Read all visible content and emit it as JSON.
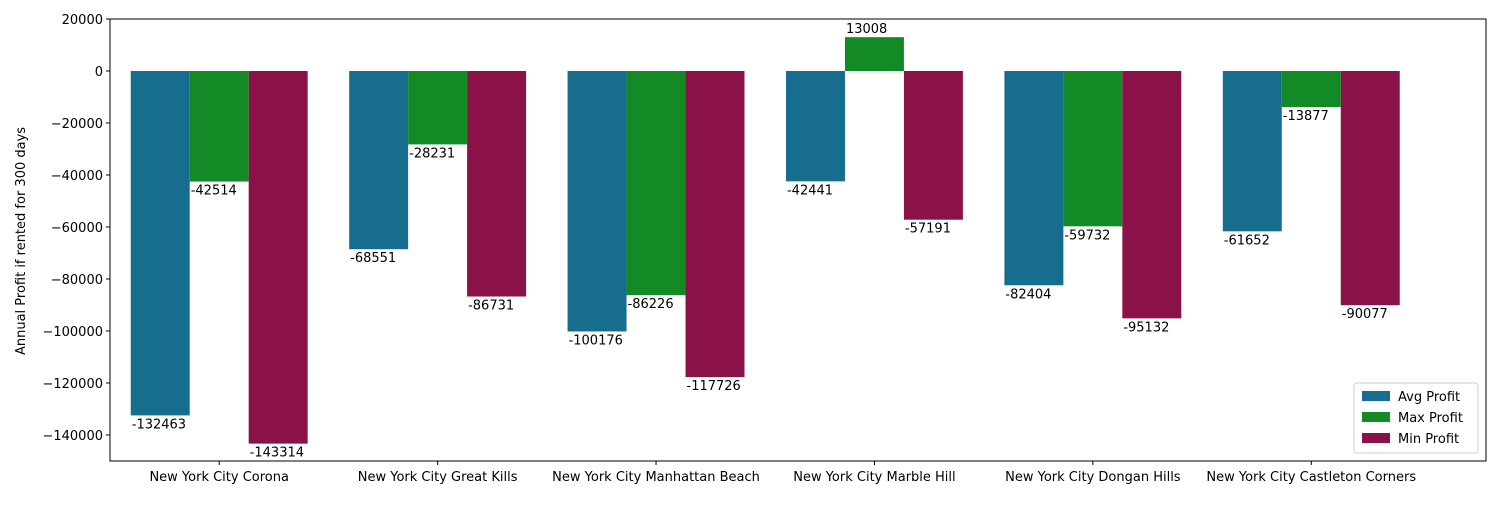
{
  "chart_data": {
    "type": "bar",
    "ylabel": "Annual Profit if rented for 300 days",
    "ylim": [
      -150000,
      20000
    ],
    "yticks": [
      20000,
      0,
      -20000,
      -40000,
      -60000,
      -80000,
      -100000,
      -120000,
      -140000
    ],
    "grid": false,
    "legend_position": "lower-right",
    "categories": [
      "New York City Corona",
      "New York City Great Kills",
      "New York City Manhattan Beach",
      "New York City Marble Hill",
      "New York City Dongan Hills",
      "New York City Castleton Corners"
    ],
    "series": [
      {
        "name": "Avg Profit",
        "color": "#176d8e",
        "values": [
          -132463,
          -68551,
          -100176,
          -42441,
          -82404,
          -61652
        ]
      },
      {
        "name": "Max Profit",
        "color": "#138a25",
        "values": [
          -42514,
          -28231,
          -86226,
          13008,
          -59732,
          -13877
        ]
      },
      {
        "name": "Min Profit",
        "color": "#8b1248",
        "values": [
          -143314,
          -86731,
          -117726,
          -57191,
          -95132,
          -90077
        ]
      }
    ]
  }
}
